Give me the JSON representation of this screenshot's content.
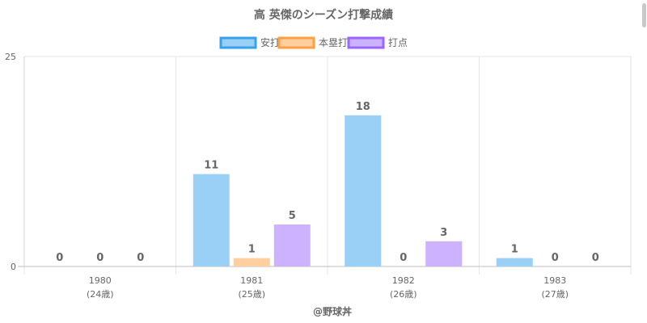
{
  "chart_data": {
    "type": "bar",
    "title": "高 英傑のシーズン打撃成績",
    "categories": [
      "1980",
      "1981",
      "1982",
      "1983"
    ],
    "category_sublabels": [
      "(24歳)",
      "(25歳)",
      "(26歳)",
      "(27歳)"
    ],
    "series": [
      {
        "name": "安打",
        "values": [
          0,
          11,
          18,
          1
        ],
        "color": "#9ad0f5",
        "border": "#36a2eb"
      },
      {
        "name": "本塁打",
        "values": [
          0,
          1,
          0,
          0
        ],
        "color": "#ffcf9f",
        "border": "#ff9f40"
      },
      {
        "name": "打点",
        "values": [
          0,
          5,
          3,
          0
        ],
        "color": "#ccb2ff",
        "border": "#9966ff"
      }
    ],
    "ylim": [
      0,
      25
    ],
    "yticks": [
      "0",
      "25"
    ],
    "grid": true,
    "legend_position": "top",
    "xlabel": "",
    "ylabel": ""
  },
  "footer": {
    "credit": "@野球丼"
  }
}
